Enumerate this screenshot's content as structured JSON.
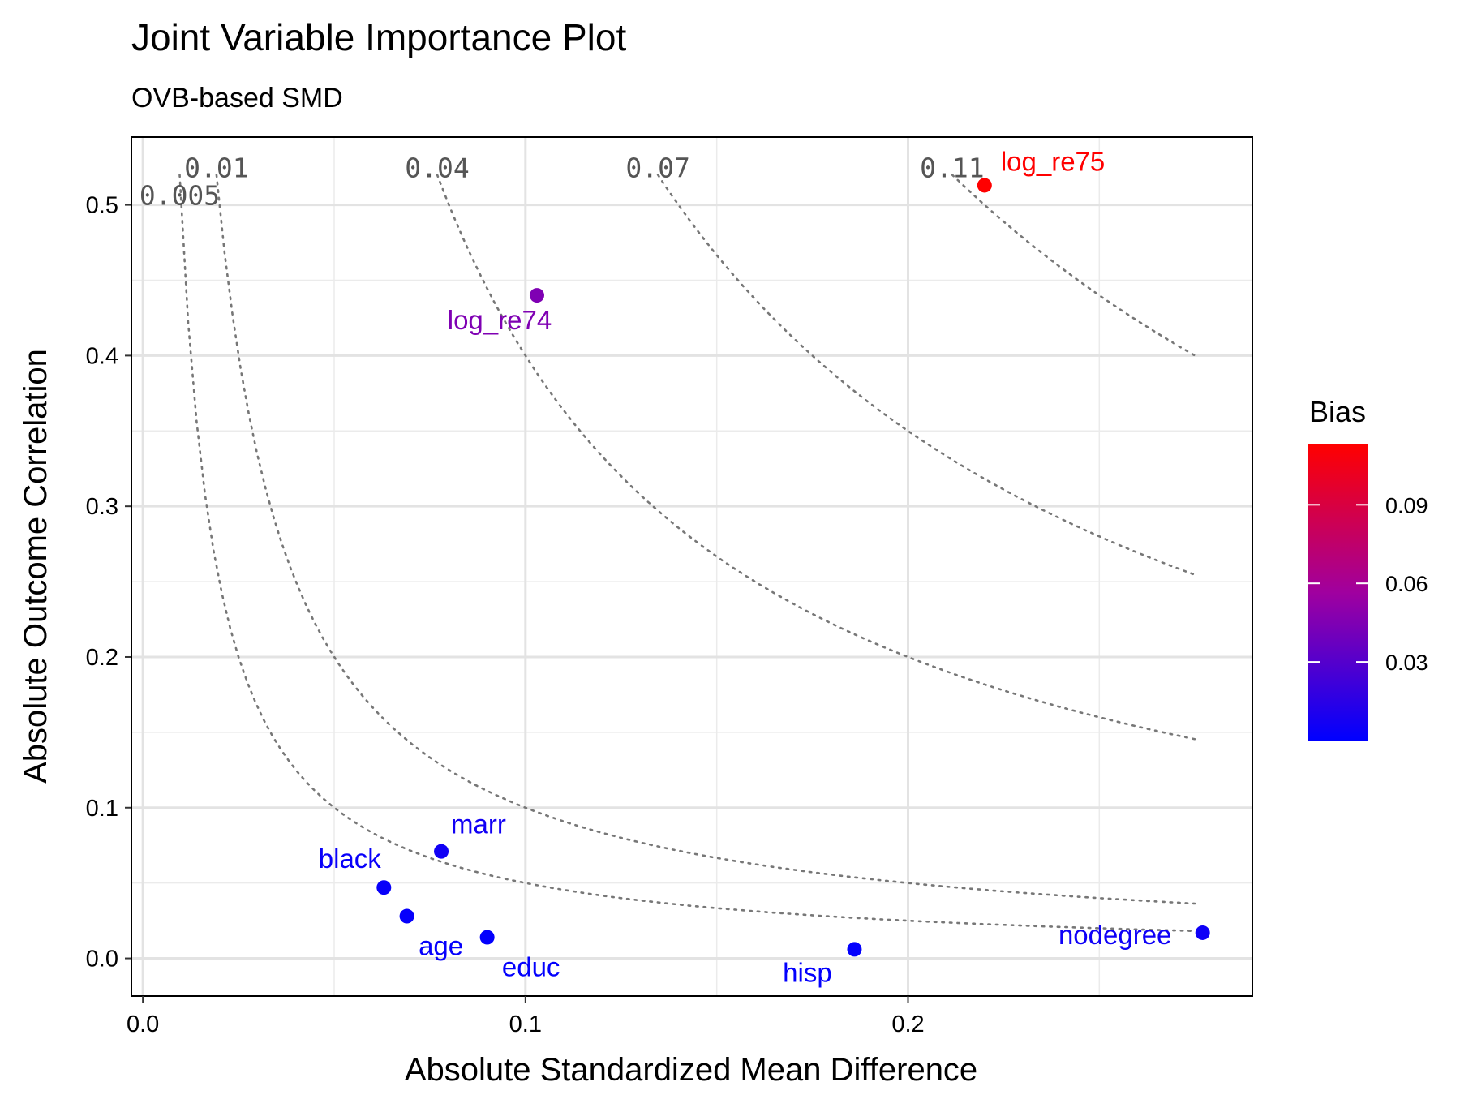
{
  "chart_data": {
    "type": "scatter",
    "title": "Joint Variable Importance Plot",
    "subtitle": "OVB-based SMD",
    "xlabel": "Absolute Standardized Mean Difference",
    "ylabel": "Absolute Outcome Correlation",
    "xlim": [
      -0.003,
      0.29
    ],
    "ylim": [
      -0.025,
      0.545
    ],
    "x_ticks": [
      "0.0",
      "0.1",
      "0.2"
    ],
    "x_tick_values": [
      0,
      0.1,
      0.2
    ],
    "y_ticks": [
      "0.0",
      "0.1",
      "0.2",
      "0.3",
      "0.4",
      "0.5"
    ],
    "y_tick_values": [
      0,
      0.1,
      0.2,
      0.3,
      0.4,
      0.5
    ],
    "grid": true,
    "points": [
      {
        "label": "log_re75",
        "x": 0.22,
        "y": 0.513,
        "bias": 0.113
      },
      {
        "label": "log_re74",
        "x": 0.103,
        "y": 0.44,
        "bias": 0.045
      },
      {
        "label": "marr",
        "x": 0.078,
        "y": 0.071,
        "bias": 0.006
      },
      {
        "label": "black",
        "x": 0.063,
        "y": 0.047,
        "bias": 0.003
      },
      {
        "label": "",
        "x": 0.069,
        "y": 0.028,
        "bias": 0.002
      },
      {
        "label": "age",
        "x": 0.069,
        "y": 0.028,
        "bias": 0.002,
        "hide_point": true
      },
      {
        "label": "educ",
        "x": 0.09,
        "y": 0.014,
        "bias": 0.001
      },
      {
        "label": "hisp",
        "x": 0.186,
        "y": 0.006,
        "bias": 0.001
      },
      {
        "label": "nodegree",
        "x": 0.277,
        "y": 0.017,
        "bias": 0.005
      }
    ],
    "contours": [
      {
        "label": "0.005",
        "level": 0.005
      },
      {
        "label": "0.01",
        "level": 0.01
      },
      {
        "label": "0.04",
        "level": 0.04
      },
      {
        "label": "0.07",
        "level": 0.07
      },
      {
        "label": "0.11",
        "level": 0.11
      }
    ],
    "legend": {
      "title": "Bias",
      "placement": "right",
      "range": [
        0.0,
        0.113
      ],
      "ticks": [
        "0.03",
        "0.06",
        "0.09"
      ],
      "tick_values": [
        0.03,
        0.06,
        0.09
      ]
    },
    "colors": {
      "low": "#0000ff",
      "high": "#ff0000",
      "mid": "#aa00aa"
    }
  }
}
